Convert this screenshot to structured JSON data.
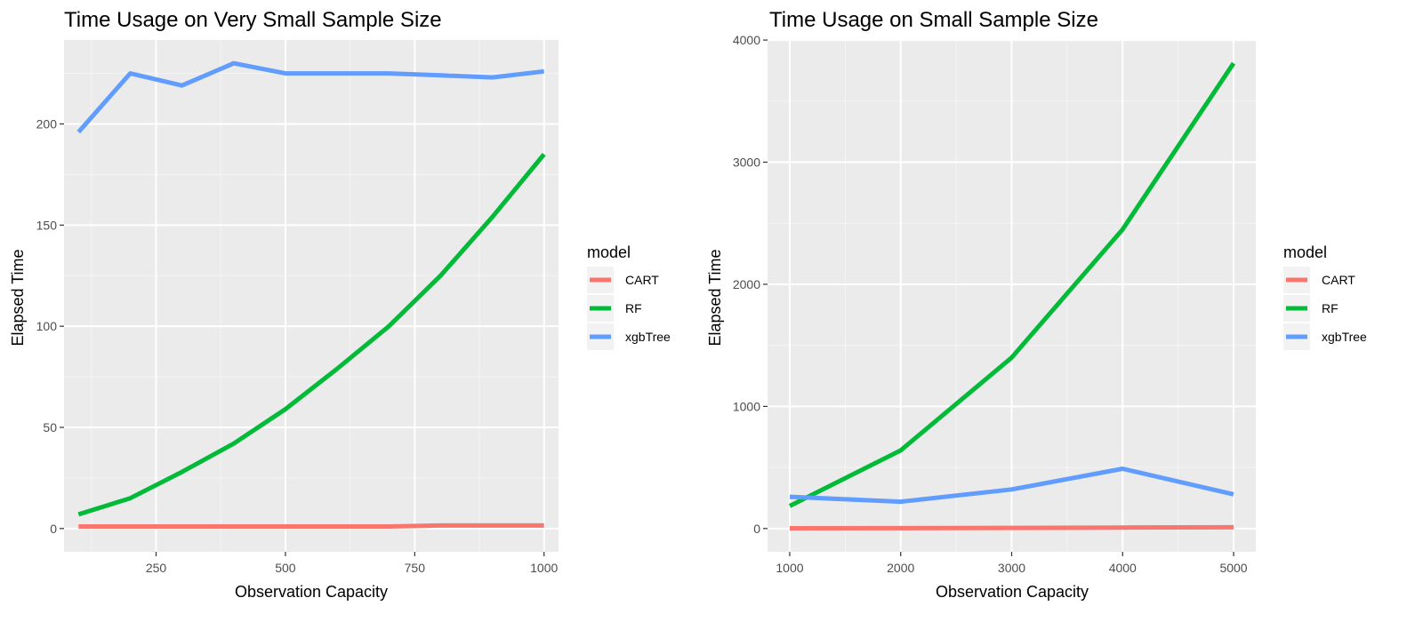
{
  "legend": {
    "title": "model"
  },
  "chart_data": [
    {
      "type": "line",
      "title": "Time Usage on Very Small Sample Size",
      "xlabel": "Observation Capacity",
      "ylabel": "Elapsed Time",
      "xlim": [
        100,
        1000
      ],
      "ylim": [
        0,
        230
      ],
      "x_ticks": [
        250,
        500,
        750,
        1000
      ],
      "y_ticks": [
        0,
        50,
        100,
        150,
        200
      ],
      "grid": true,
      "legend_position": "right",
      "x": [
        100,
        200,
        300,
        400,
        500,
        600,
        700,
        800,
        900,
        1000
      ],
      "series": [
        {
          "name": "CART",
          "color": "#f8766d",
          "values": [
            1,
            1,
            1,
            1,
            1,
            1,
            1,
            1.5,
            1.5,
            1.5
          ]
        },
        {
          "name": "RF",
          "color": "#00ba38",
          "values": [
            7,
            15,
            28,
            42,
            59,
            79,
            100,
            125,
            154,
            185
          ]
        },
        {
          "name": "xgbTree",
          "color": "#619cff",
          "values": [
            196,
            225,
            219,
            230,
            225,
            225,
            225,
            224,
            223,
            226
          ]
        }
      ]
    },
    {
      "type": "line",
      "title": "Time Usage on Small Sample Size",
      "xlabel": "Observation Capacity",
      "ylabel": "Elapsed Time",
      "xlim": [
        1000,
        5000
      ],
      "ylim": [
        0,
        3810
      ],
      "x_ticks": [
        1000,
        2000,
        3000,
        4000,
        5000
      ],
      "y_ticks": [
        0,
        1000,
        2000,
        3000,
        4000
      ],
      "grid": true,
      "legend_position": "right",
      "x": [
        1000,
        2000,
        3000,
        4000,
        5000
      ],
      "series": [
        {
          "name": "CART",
          "color": "#f8766d",
          "values": [
            2,
            3,
            5,
            8,
            10
          ]
        },
        {
          "name": "RF",
          "color": "#00ba38",
          "values": [
            185,
            640,
            1400,
            2450,
            3810
          ]
        },
        {
          "name": "xgbTree",
          "color": "#619cff",
          "values": [
            260,
            220,
            320,
            490,
            280
          ]
        }
      ]
    }
  ]
}
